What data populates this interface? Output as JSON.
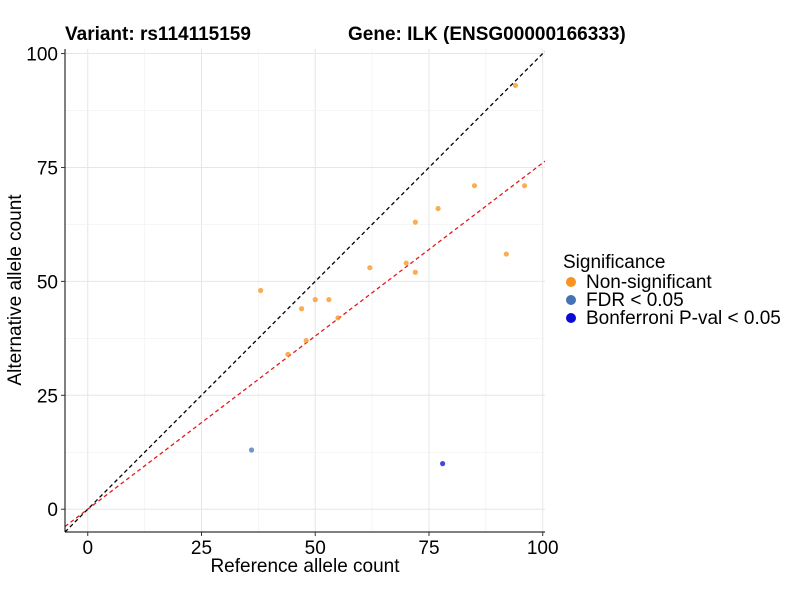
{
  "header": {
    "variant_title": "Variant: rs114115159",
    "gene_title": "Gene: ILK (ENSG00000166333)"
  },
  "legend": {
    "title": "Significance",
    "items": [
      {
        "label": "Non-significant",
        "color": "#f7931e"
      },
      {
        "label": "FDR < 0.05",
        "color": "#4472b4"
      },
      {
        "label": "Bonferroni P-val < 0.05",
        "color": "#0a0ad6"
      }
    ]
  },
  "chart_data": {
    "type": "scatter",
    "xlabel": "Reference allele count",
    "ylabel": "Alternative allele count",
    "xlim": [
      -5,
      100.5
    ],
    "ylim": [
      -5,
      101
    ],
    "xticks": [
      0,
      25,
      50,
      75,
      100
    ],
    "yticks": [
      0,
      25,
      50,
      75,
      100
    ],
    "grid": true,
    "legend_position": "right",
    "reference_lines": [
      {
        "slope": 1,
        "intercept": 0,
        "color": "#000000",
        "style": "dashed"
      },
      {
        "slope": 0.76,
        "intercept": 0,
        "color": "#e31a1c",
        "style": "dashed"
      }
    ],
    "series": [
      {
        "name": "Non-significant",
        "color": "#f7931e",
        "points": [
          {
            "x": 38,
            "y": 48
          },
          {
            "x": 44,
            "y": 34
          },
          {
            "x": 47,
            "y": 44
          },
          {
            "x": 48,
            "y": 37
          },
          {
            "x": 50,
            "y": 46
          },
          {
            "x": 53,
            "y": 46
          },
          {
            "x": 55,
            "y": 42
          },
          {
            "x": 62,
            "y": 53
          },
          {
            "x": 70,
            "y": 54
          },
          {
            "x": 72,
            "y": 63
          },
          {
            "x": 72,
            "y": 52
          },
          {
            "x": 77,
            "y": 66
          },
          {
            "x": 85,
            "y": 71
          },
          {
            "x": 92,
            "y": 56
          },
          {
            "x": 94,
            "y": 93
          },
          {
            "x": 96,
            "y": 71
          }
        ]
      },
      {
        "name": "FDR < 0.05",
        "color": "#4472b4",
        "points": [
          {
            "x": 36,
            "y": 13
          }
        ]
      },
      {
        "name": "Bonferroni P-val < 0.05",
        "color": "#0a0ad6",
        "points": [
          {
            "x": 78,
            "y": 10
          }
        ]
      }
    ]
  }
}
